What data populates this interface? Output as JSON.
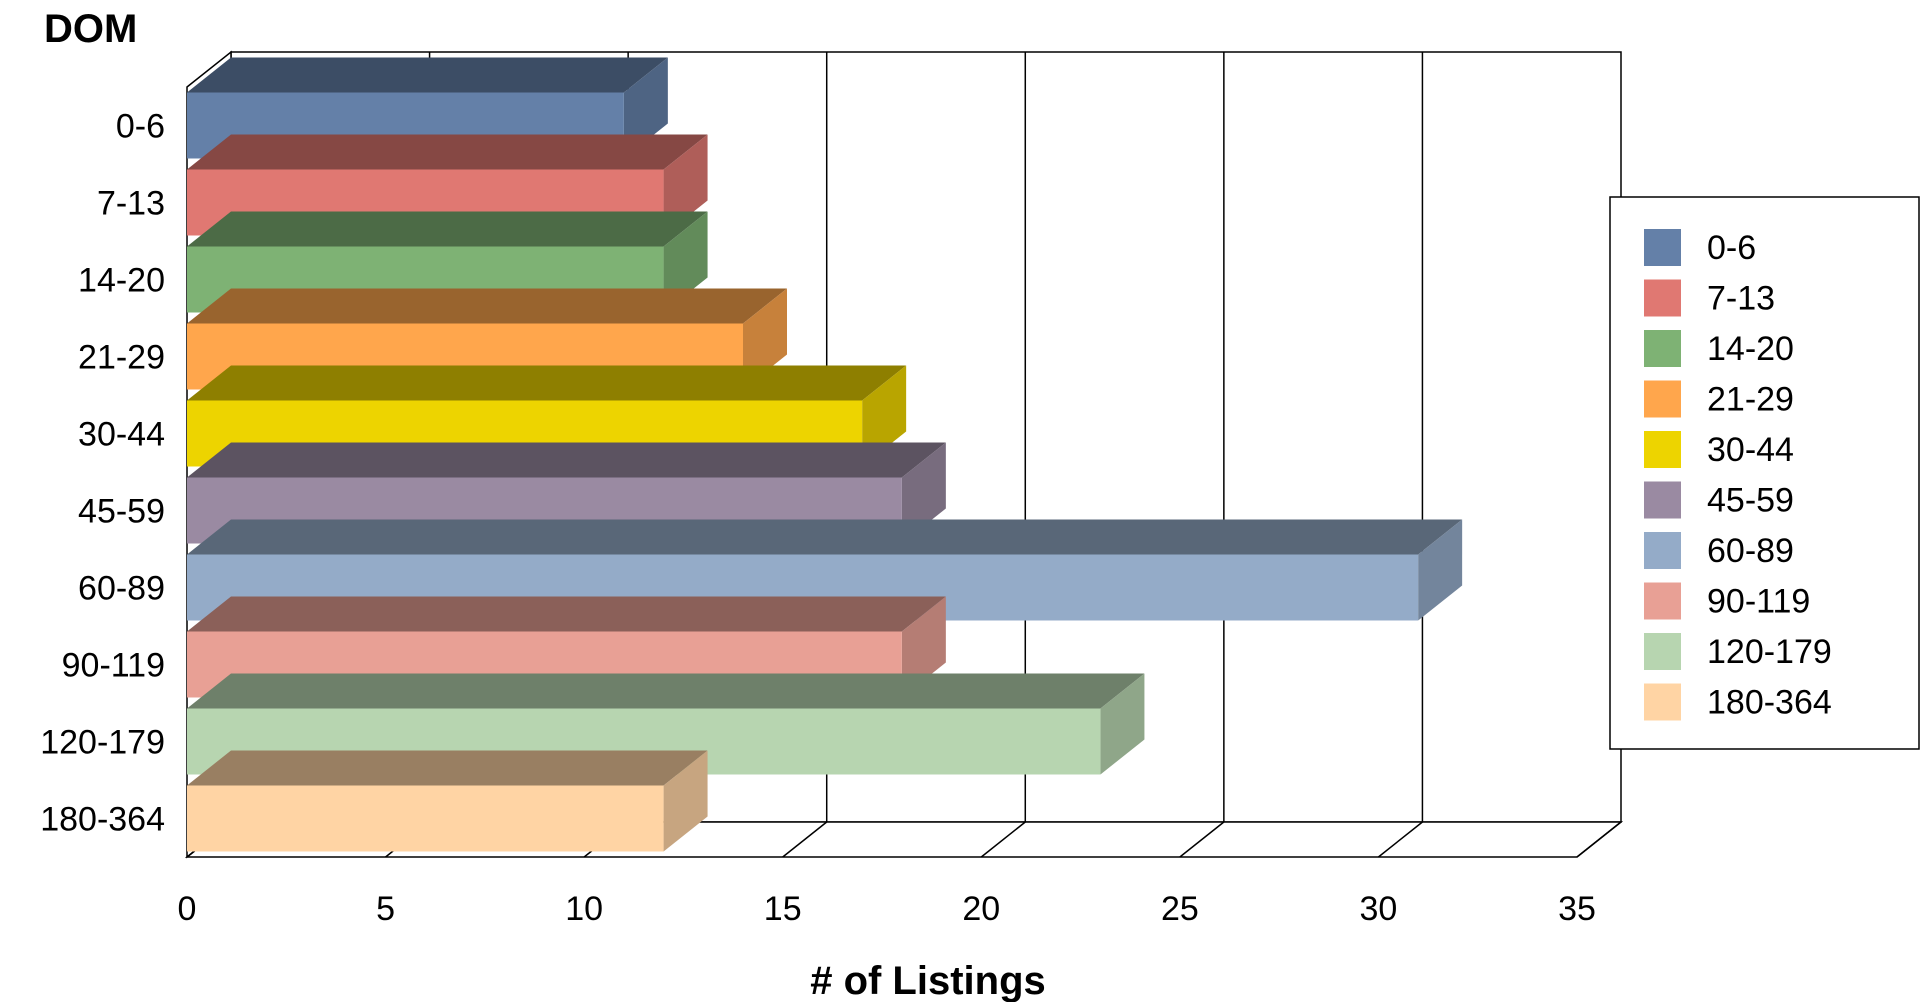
{
  "chart_data": {
    "type": "bar",
    "orientation": "horizontal",
    "three_d": true,
    "title": "",
    "ylabel": "DOM",
    "xlabel": "# of Listings",
    "xlim": [
      0,
      35
    ],
    "xticks": [
      0,
      5,
      10,
      15,
      20,
      25,
      30,
      35
    ],
    "grid": true,
    "legend_position": "right",
    "categories": [
      "0-6",
      "7-13",
      "14-20",
      "21-29",
      "30-44",
      "45-59",
      "60-89",
      "90-119",
      "120-179",
      "180-364"
    ],
    "values": [
      11,
      12,
      12,
      14,
      17,
      18,
      31,
      18,
      23,
      12
    ],
    "colors": [
      "#6480A8",
      "#E07872",
      "#7EB274",
      "#FFA64C",
      "#EDD400",
      "#9A8AA2",
      "#94ABC8",
      "#E8A095",
      "#B7D5B0",
      "#FFD4A4"
    ],
    "legend": [
      "0-6",
      "7-13",
      "14-20",
      "21-29",
      "30-44",
      "45-59",
      "60-89",
      "90-119",
      "120-179",
      "180-364"
    ]
  }
}
